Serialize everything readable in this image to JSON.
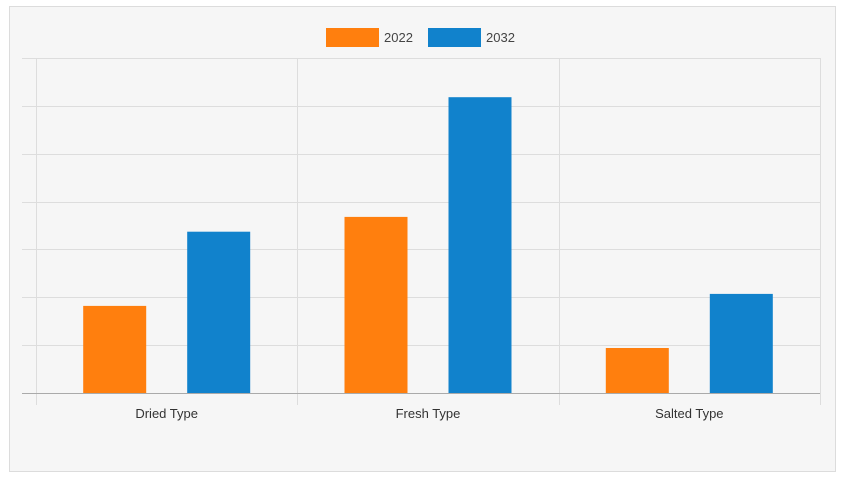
{
  "chart_data": {
    "type": "bar",
    "categories": [
      "Dried Type",
      "Fresh Type",
      "Salted Type"
    ],
    "series": [
      {
        "name": "2022",
        "color": "#ff7f0e",
        "values": [
          18.2,
          36.8,
          9.4
        ]
      },
      {
        "name": "2032",
        "color": "#1182cc",
        "values": [
          33.7,
          61.8,
          20.7
        ]
      }
    ],
    "ylim": [
      0,
      70
    ],
    "y_gridlines": [
      10,
      20,
      30,
      40,
      50,
      60,
      70
    ],
    "y_tick_labels_shown": false,
    "grid": true,
    "legend": "top-center",
    "title": "",
    "xlabel": "",
    "ylabel": ""
  }
}
